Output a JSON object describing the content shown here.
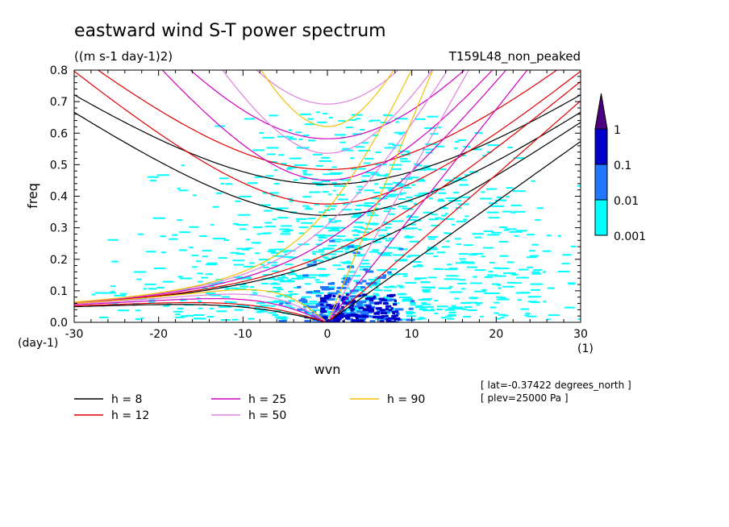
{
  "title": "eastward wind S-T power spectrum",
  "units": "((m s-1 day-1)2)",
  "run_label": "T159L48_non_peaked",
  "chart_data": {
    "type": "heatmap",
    "xlabel": "wvn",
    "ylabel": "freq",
    "x_units": "(1)",
    "y_units": "(day-1)",
    "xlim": [
      -30,
      30
    ],
    "ylim": [
      0,
      0.8
    ],
    "x_ticks": [
      "-30",
      "-20",
      "-10",
      "0",
      "10",
      "20",
      "30"
    ],
    "y_ticks": [
      "0.0",
      "0.1",
      "0.2",
      "0.3",
      "0.4",
      "0.5",
      "0.6",
      "0.7",
      "0.8"
    ],
    "colorbar": {
      "levels": [
        "0.001",
        "0.01",
        "0.1",
        "1"
      ],
      "colors": [
        "#00ffff",
        "#1f78ff",
        "#0000cc",
        "#4b0082"
      ]
    },
    "dispersion_curves": [
      {
        "label": "h =  8",
        "h": 8,
        "color": "#000000"
      },
      {
        "label": "h = 12",
        "h": 12,
        "color": "#e00000"
      },
      {
        "label": "h = 25",
        "h": 25,
        "color": "#d000c0"
      },
      {
        "label": "h = 50",
        "h": 50,
        "color": "#e080e0"
      },
      {
        "label": "h = 90",
        "h": 90,
        "color": "#f0c000"
      }
    ],
    "annotations": [
      "[ lat=-0.37422 degrees_north ]",
      "[ plev=25000 Pa ]"
    ],
    "grid": false,
    "legend_position": "bottom-left"
  }
}
